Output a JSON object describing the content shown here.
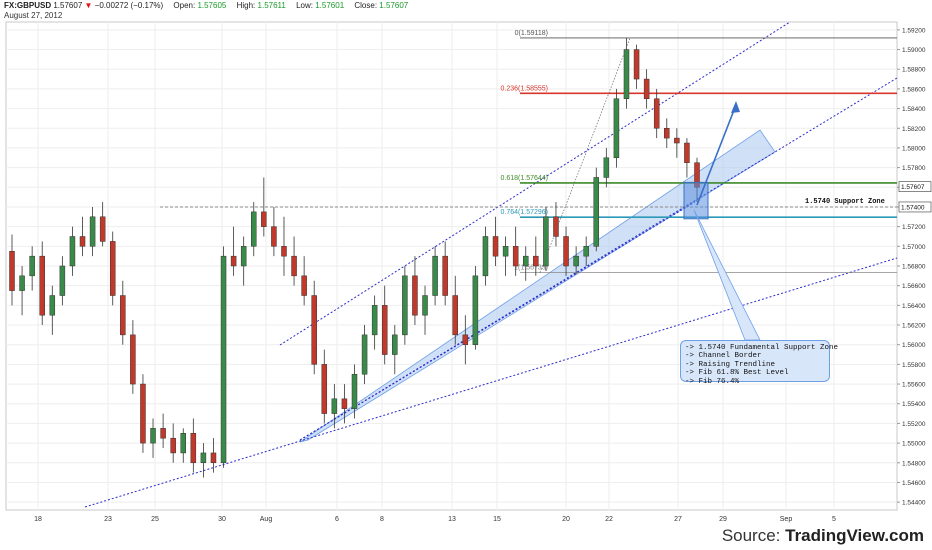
{
  "header": {
    "symbol": "FX:GBPUSD",
    "last": "1.57607",
    "arrow": "▼",
    "change": "−0.00272 (−0.17%)",
    "open_label": "Open:",
    "open": "1.57605",
    "high_label": "High:",
    "high": "1.57611",
    "low_label": "Low:",
    "low": "1.57601",
    "close_label": "Close:",
    "close": "1.57607",
    "date": "August 27, 2012"
  },
  "source": {
    "prefix": "Source: ",
    "brand": "TradingView.com"
  },
  "note": {
    "lines": [
      "-> 1.5740 Fundamental Support Zone",
      "-> Channel Border",
      "-> Raising Trendline",
      "-> Fib 61.8% Best Level",
      "-> Fib 76.4%"
    ]
  },
  "colors": {
    "up": "#3a8a4a",
    "down": "#c0392b",
    "fib0": "#555555",
    "fib236": "#d9342b",
    "fib618": "#3d8a2a",
    "fib764": "#2a9ab8",
    "trend": "#2b2bcc",
    "zone": "#a9c6ef"
  },
  "chart_data": {
    "type": "candlestick",
    "ylim": [
      1.5432,
      1.5928
    ],
    "y_ticks": [
      "1.59200",
      "1.59000",
      "1.58800",
      "1.58600",
      "1.58400",
      "1.58200",
      "1.58000",
      "1.57800",
      "1.57600",
      "1.57400",
      "1.57200",
      "1.57000",
      "1.56800",
      "1.56600",
      "1.56400",
      "1.56200",
      "1.56000",
      "1.55800",
      "1.55600",
      "1.55400",
      "1.55200",
      "1.55000",
      "1.54800",
      "1.54600",
      "1.54400"
    ],
    "x_ticks": [
      "18",
      "23",
      "25",
      "30",
      "Aug",
      "6",
      "8",
      "13",
      "15",
      "20",
      "22",
      "27",
      "29",
      "Sep",
      "5"
    ],
    "price_badges": [
      "1.57607",
      "1.57400"
    ],
    "fib_levels": [
      {
        "label": "0(1.59118)",
        "value": 1.59118
      },
      {
        "label": "0.236(1.58555)",
        "value": 1.58555
      },
      {
        "label": "0.618(1.57644)",
        "value": 1.57644
      },
      {
        "label": "0.764(1.57296)",
        "value": 1.57296
      },
      {
        "label": "1(1.56733)",
        "value": 1.56733
      }
    ],
    "support_zone": {
      "label": "1.5740 Support Zone",
      "value": 1.574
    },
    "ohlc": [
      [
        1.5695,
        1.5712,
        1.564,
        1.5655
      ],
      [
        1.5655,
        1.568,
        1.563,
        1.567
      ],
      [
        1.567,
        1.57,
        1.5655,
        1.569
      ],
      [
        1.569,
        1.5705,
        1.562,
        1.563
      ],
      [
        1.563,
        1.566,
        1.561,
        1.565
      ],
      [
        1.565,
        1.569,
        1.564,
        1.568
      ],
      [
        1.568,
        1.572,
        1.567,
        1.571
      ],
      [
        1.571,
        1.573,
        1.569,
        1.57
      ],
      [
        1.57,
        1.574,
        1.569,
        1.573
      ],
      [
        1.573,
        1.5745,
        1.57,
        1.5705
      ],
      [
        1.5705,
        1.5715,
        1.564,
        1.565
      ],
      [
        1.565,
        1.5665,
        1.56,
        1.561
      ],
      [
        1.561,
        1.5625,
        1.555,
        1.556
      ],
      [
        1.556,
        1.557,
        1.549,
        1.55
      ],
      [
        1.55,
        1.5525,
        1.5485,
        1.5515
      ],
      [
        1.5515,
        1.553,
        1.5495,
        1.5505
      ],
      [
        1.5505,
        1.552,
        1.548,
        1.549
      ],
      [
        1.549,
        1.5515,
        1.548,
        1.551
      ],
      [
        1.551,
        1.5525,
        1.547,
        1.548
      ],
      [
        1.548,
        1.55,
        1.5465,
        1.549
      ],
      [
        1.549,
        1.5505,
        1.547,
        1.548
      ],
      [
        1.548,
        1.57,
        1.5475,
        1.569
      ],
      [
        1.569,
        1.572,
        1.567,
        1.568
      ],
      [
        1.568,
        1.571,
        1.566,
        1.57
      ],
      [
        1.57,
        1.5745,
        1.569,
        1.5735
      ],
      [
        1.5735,
        1.577,
        1.571,
        1.572
      ],
      [
        1.572,
        1.574,
        1.569,
        1.57
      ],
      [
        1.57,
        1.573,
        1.567,
        1.569
      ],
      [
        1.569,
        1.571,
        1.566,
        1.567
      ],
      [
        1.567,
        1.569,
        1.564,
        1.565
      ],
      [
        1.565,
        1.5665,
        1.557,
        1.558
      ],
      [
        1.558,
        1.5595,
        1.552,
        1.553
      ],
      [
        1.553,
        1.556,
        1.5515,
        1.5545
      ],
      [
        1.5545,
        1.556,
        1.552,
        1.5535
      ],
      [
        1.5535,
        1.558,
        1.5525,
        1.557
      ],
      [
        1.557,
        1.562,
        1.556,
        1.561
      ],
      [
        1.561,
        1.565,
        1.5595,
        1.564
      ],
      [
        1.564,
        1.566,
        1.558,
        1.559
      ],
      [
        1.559,
        1.562,
        1.557,
        1.561
      ],
      [
        1.561,
        1.568,
        1.56,
        1.567
      ],
      [
        1.567,
        1.569,
        1.562,
        1.563
      ],
      [
        1.563,
        1.566,
        1.561,
        1.565
      ],
      [
        1.565,
        1.57,
        1.564,
        1.569
      ],
      [
        1.569,
        1.5705,
        1.564,
        1.565
      ],
      [
        1.565,
        1.567,
        1.56,
        1.561
      ],
      [
        1.561,
        1.563,
        1.558,
        1.56
      ],
      [
        1.56,
        1.568,
        1.5595,
        1.567
      ],
      [
        1.567,
        1.572,
        1.566,
        1.571
      ],
      [
        1.571,
        1.573,
        1.568,
        1.569
      ],
      [
        1.569,
        1.571,
        1.567,
        1.57
      ],
      [
        1.57,
        1.572,
        1.567,
        1.568
      ],
      [
        1.568,
        1.57,
        1.5665,
        1.569
      ],
      [
        1.569,
        1.571,
        1.567,
        1.568
      ],
      [
        1.568,
        1.574,
        1.5675,
        1.573
      ],
      [
        1.573,
        1.5745,
        1.57,
        1.571
      ],
      [
        1.571,
        1.572,
        1.567,
        1.568
      ],
      [
        1.568,
        1.57,
        1.5672,
        1.569
      ],
      [
        1.569,
        1.571,
        1.568,
        1.57
      ],
      [
        1.57,
        1.578,
        1.5695,
        1.577
      ],
      [
        1.577,
        1.58,
        1.576,
        1.579
      ],
      [
        1.579,
        1.586,
        1.578,
        1.585
      ],
      [
        1.585,
        1.5912,
        1.584,
        1.59
      ],
      [
        1.59,
        1.5905,
        1.586,
        1.587
      ],
      [
        1.587,
        1.588,
        1.584,
        1.585
      ],
      [
        1.585,
        1.586,
        1.581,
        1.582
      ],
      [
        1.582,
        1.583,
        1.58,
        1.581
      ],
      [
        1.581,
        1.582,
        1.579,
        1.5805
      ],
      [
        1.5805,
        1.581,
        1.577,
        1.5785
      ],
      [
        1.5785,
        1.579,
        1.5745,
        1.576
      ]
    ]
  }
}
